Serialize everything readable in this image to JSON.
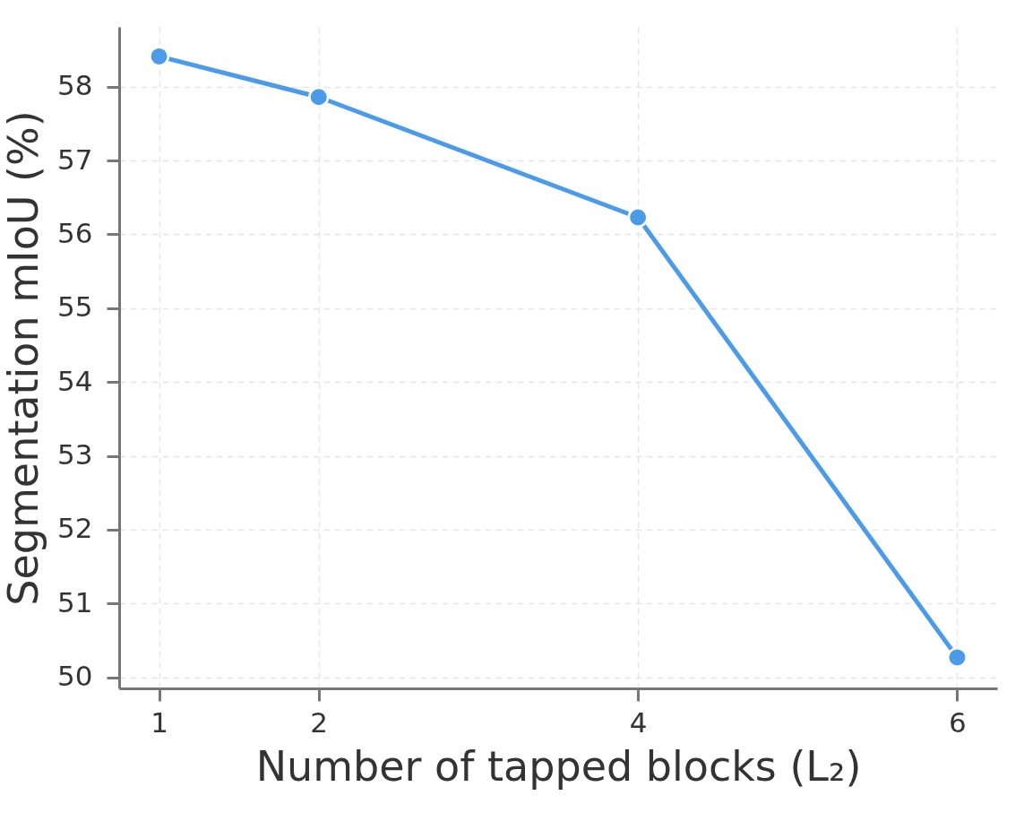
{
  "chart_data": {
    "type": "line",
    "xlabel": "Number of tapped blocks (L₂)",
    "ylabel": "Segmentation mIoU (%)",
    "x": [
      1,
      2,
      4,
      6
    ],
    "series": [
      {
        "color": "#4c9be8",
        "values": [
          58.41,
          57.86,
          56.23,
          50.27
        ]
      }
    ],
    "xlim": [
      0.75,
      6.25
    ],
    "xticks": [
      1,
      2,
      4,
      6
    ],
    "ylim": [
      49.85,
      58.81
    ],
    "yticks": [
      50,
      51,
      52,
      53,
      54,
      55,
      56,
      57,
      58
    ],
    "grid": true,
    "marker": "circle",
    "line_style": "solid"
  }
}
